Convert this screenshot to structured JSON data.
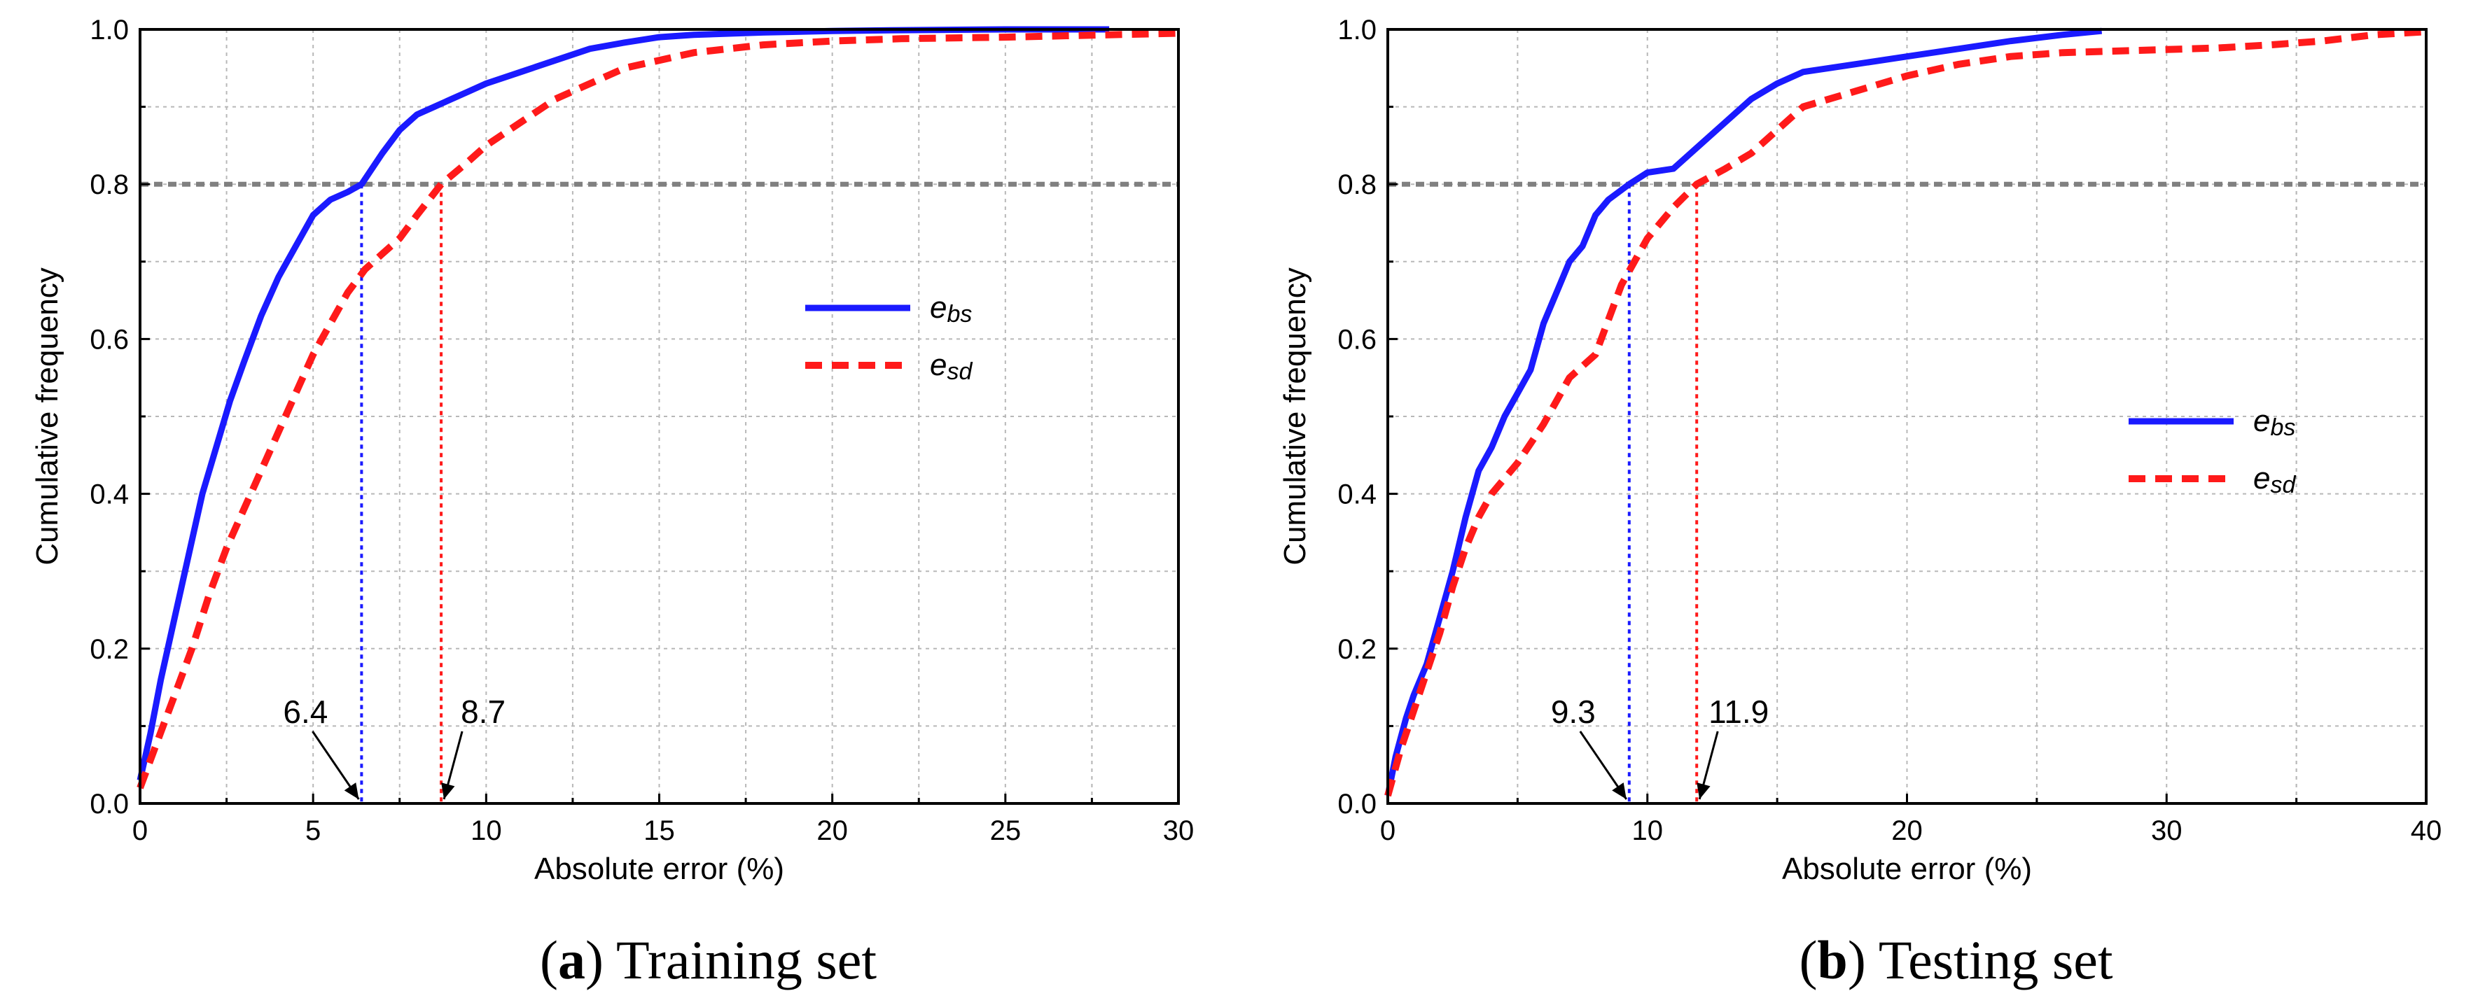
{
  "chart_data": [
    {
      "id": "a",
      "type": "line",
      "caption_letter": "a",
      "caption_text": "Training set",
      "xlabel": "Absolute error (%)",
      "ylabel": "Cumulative frequency",
      "xlim": [
        0,
        30
      ],
      "ylim": [
        0,
        1.0
      ],
      "xticks": [
        0,
        5,
        10,
        15,
        20,
        25,
        30
      ],
      "xtick_labels": [
        "0",
        "5",
        "10",
        "15",
        "20",
        "25",
        "30"
      ],
      "yticks": [
        0,
        0.2,
        0.4,
        0.6,
        0.8,
        1.0
      ],
      "ytick_labels": [
        "0.0",
        "0.2",
        "0.4",
        "0.6",
        "0.8",
        "1.0"
      ],
      "grid": true,
      "legend": "right",
      "reference_level": 0.8,
      "series": [
        {
          "name_main": "e",
          "name_sub": "bs",
          "color": "#1a1aff",
          "dash": "solid",
          "x": [
            0,
            0.3,
            0.6,
            1.0,
            1.4,
            1.8,
            2.2,
            2.6,
            3.0,
            3.5,
            4.0,
            4.5,
            5.0,
            5.5,
            6.0,
            6.4,
            7.0,
            7.5,
            8.0,
            8.5,
            9.0,
            9.5,
            10.0,
            11.0,
            12.0,
            13.0,
            14.0,
            15.0,
            16.0,
            18.0,
            20.0,
            22.0,
            25.0,
            28.0
          ],
          "y": [
            0.03,
            0.09,
            0.16,
            0.24,
            0.32,
            0.4,
            0.46,
            0.52,
            0.57,
            0.63,
            0.68,
            0.72,
            0.76,
            0.78,
            0.79,
            0.8,
            0.84,
            0.87,
            0.89,
            0.9,
            0.91,
            0.92,
            0.93,
            0.945,
            0.96,
            0.975,
            0.983,
            0.99,
            0.993,
            0.996,
            0.998,
            0.999,
            1.0,
            1.0
          ]
        },
        {
          "name_main": "e",
          "name_sub": "sd",
          "color": "#ff1a1a",
          "dash": "dashed",
          "x": [
            0,
            0.5,
            1.0,
            1.5,
            2.0,
            2.5,
            3.0,
            3.5,
            4.0,
            4.5,
            5.0,
            5.5,
            6.0,
            6.5,
            7.0,
            7.5,
            8.0,
            8.7,
            9.5,
            10.0,
            11.0,
            12.0,
            13.0,
            14.0,
            15.0,
            16.0,
            17.0,
            18.0,
            20.0,
            22.0,
            25.0,
            28.0,
            30.0
          ],
          "y": [
            0.02,
            0.08,
            0.14,
            0.2,
            0.27,
            0.33,
            0.38,
            0.43,
            0.48,
            0.53,
            0.58,
            0.62,
            0.66,
            0.69,
            0.71,
            0.73,
            0.76,
            0.8,
            0.83,
            0.85,
            0.88,
            0.91,
            0.93,
            0.95,
            0.96,
            0.97,
            0.975,
            0.98,
            0.985,
            0.988,
            0.99,
            0.993,
            0.995
          ]
        }
      ],
      "markers": [
        {
          "x": 6.4,
          "label": "6.4",
          "color": "#1a1aff"
        },
        {
          "x": 8.7,
          "label": "8.7",
          "color": "#ff1a1a"
        }
      ]
    },
    {
      "id": "b",
      "type": "line",
      "caption_letter": "b",
      "caption_text": "Testing set",
      "xlabel": "Absolute error (%)",
      "ylabel": "Cumulative frequency",
      "xlim": [
        0,
        40
      ],
      "ylim": [
        0,
        1.0
      ],
      "xticks": [
        0,
        10,
        20,
        30,
        40
      ],
      "xtick_labels": [
        "0",
        "10",
        "20",
        "30",
        "40"
      ],
      "yticks": [
        0,
        0.2,
        0.4,
        0.6,
        0.8,
        1.0
      ],
      "ytick_labels": [
        "0.0",
        "0.2",
        "0.4",
        "0.6",
        "0.8",
        "1.0"
      ],
      "grid": true,
      "legend": "right",
      "reference_level": 0.8,
      "series": [
        {
          "name_main": "e",
          "name_sub": "bs",
          "color": "#1a1aff",
          "dash": "solid",
          "x": [
            0,
            0.3,
            0.7,
            1.0,
            1.5,
            2.0,
            2.5,
            3.0,
            3.5,
            4.0,
            4.5,
            5.0,
            5.5,
            6.0,
            6.5,
            7.0,
            7.5,
            8.0,
            8.5,
            9.3,
            10.0,
            11.0,
            12.0,
            13.0,
            14.0,
            15.0,
            16.0,
            17.0,
            18.0,
            20.0,
            22.0,
            24.0,
            26.0,
            27.5
          ],
          "y": [
            0.01,
            0.06,
            0.11,
            0.14,
            0.18,
            0.24,
            0.3,
            0.37,
            0.43,
            0.46,
            0.5,
            0.53,
            0.56,
            0.62,
            0.66,
            0.7,
            0.72,
            0.76,
            0.78,
            0.8,
            0.815,
            0.82,
            0.85,
            0.88,
            0.91,
            0.93,
            0.945,
            0.95,
            0.955,
            0.965,
            0.975,
            0.985,
            0.993,
            0.998
          ]
        },
        {
          "name_main": "e",
          "name_sub": "sd",
          "color": "#ff1a1a",
          "dash": "dashed",
          "x": [
            0,
            0.5,
            1.0,
            1.5,
            2.0,
            2.5,
            3.0,
            3.5,
            4.0,
            5.0,
            6.0,
            7.0,
            8.0,
            9.0,
            10.0,
            11.0,
            11.9,
            13.0,
            14.0,
            15.0,
            16.0,
            18.0,
            20.0,
            22.0,
            24.0,
            26.0,
            28.0,
            30.0,
            32.0,
            34.0,
            36.0,
            38.0,
            40.0
          ],
          "y": [
            0.01,
            0.07,
            0.12,
            0.17,
            0.22,
            0.28,
            0.33,
            0.37,
            0.4,
            0.44,
            0.49,
            0.55,
            0.58,
            0.67,
            0.73,
            0.77,
            0.8,
            0.82,
            0.84,
            0.87,
            0.9,
            0.92,
            0.94,
            0.955,
            0.965,
            0.97,
            0.972,
            0.974,
            0.976,
            0.98,
            0.985,
            0.993,
            0.997
          ]
        }
      ],
      "markers": [
        {
          "x": 9.3,
          "label": "9.3",
          "color": "#1a1aff"
        },
        {
          "x": 11.9,
          "label": "11.9",
          "color": "#ff1a1a"
        }
      ]
    }
  ]
}
